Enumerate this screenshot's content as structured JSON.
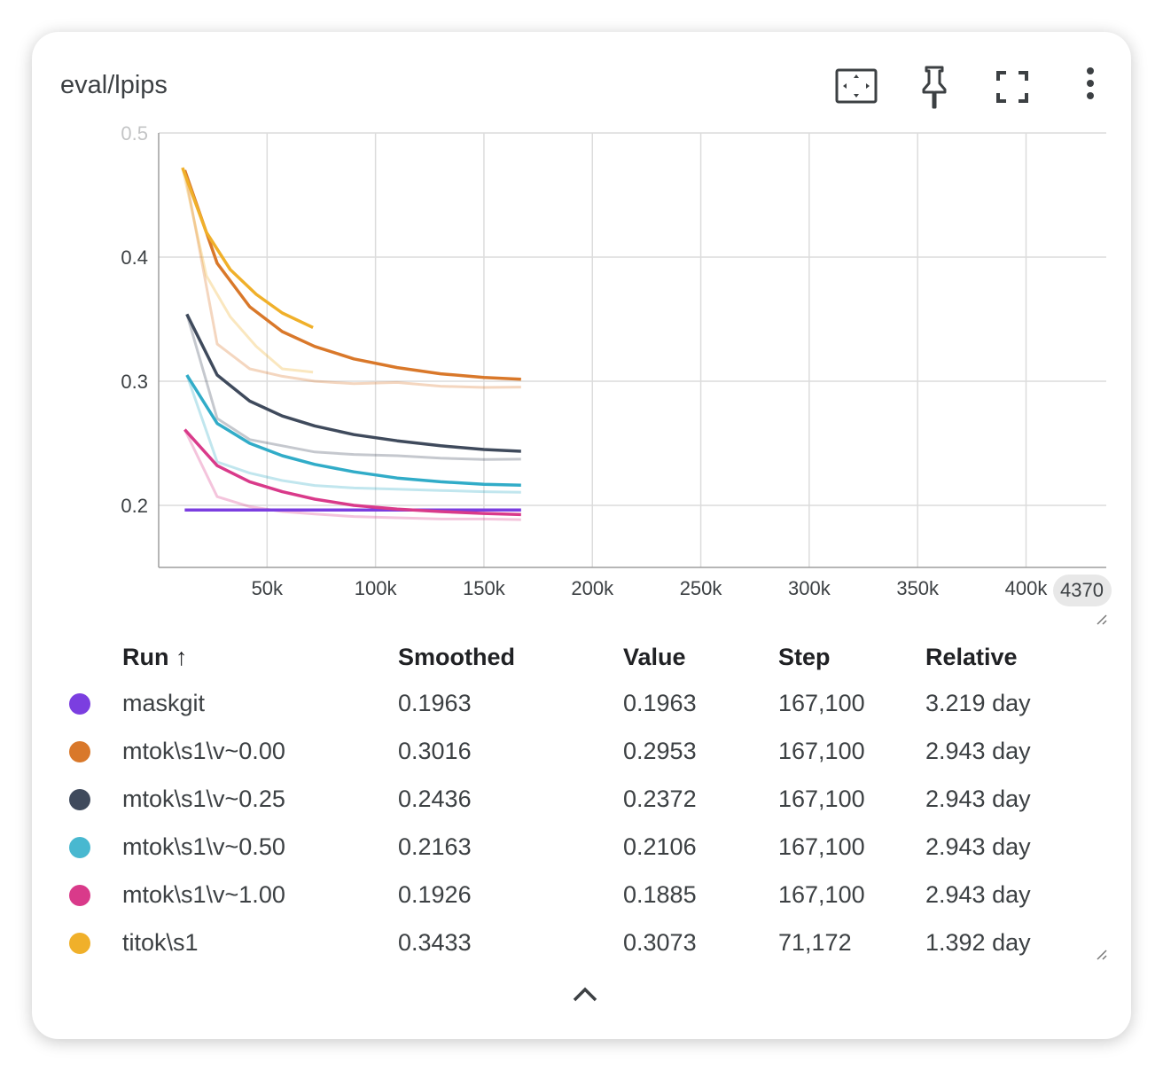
{
  "card": {
    "title": "eval/lpips"
  },
  "toolbar": {
    "fit_icon": "fit-domain-icon",
    "pin_icon": "pin-icon",
    "fullscreen_icon": "fullscreen-icon",
    "more_icon": "more-vert-icon"
  },
  "chart_data": {
    "type": "line",
    "title": "",
    "xlabel": "",
    "ylabel": "",
    "xlim": [
      0,
      437000
    ],
    "ylim": [
      0.15,
      0.5
    ],
    "x_ticks": [
      50000,
      100000,
      150000,
      200000,
      250000,
      300000,
      350000,
      400000
    ],
    "x_tick_labels": [
      "50k",
      "100k",
      "150k",
      "200k",
      "250k",
      "300k",
      "350k",
      "400k"
    ],
    "x_edge_label": "4370",
    "y_ticks": [
      0.2,
      0.3,
      0.4
    ],
    "y_tick_labels": [
      "0.2",
      "0.3",
      "0.4"
    ],
    "y_top_tick": 0.5,
    "y_top_tick_label": "0.5",
    "grid": true,
    "series": [
      {
        "name": "maskgit",
        "color": "#7b3ee0",
        "x": [
          12000,
          30000,
          45000,
          60000,
          80000,
          100000,
          120000,
          140000,
          167100
        ],
        "smoothed": [
          0.1963,
          0.1963,
          0.1963,
          0.1963,
          0.1963,
          0.1963,
          0.1963,
          0.1963,
          0.1963
        ],
        "raw": [
          0.1963,
          0.1963,
          0.1963,
          0.1963,
          0.1963,
          0.1963,
          0.1963,
          0.1963,
          0.1963
        ]
      },
      {
        "name": "mtok\\s1\\v~0.00",
        "color": "#d9782a",
        "x": [
          12000,
          27000,
          42000,
          57000,
          72000,
          90000,
          110000,
          130000,
          150000,
          167100
        ],
        "smoothed": [
          0.47,
          0.395,
          0.36,
          0.34,
          0.328,
          0.318,
          0.311,
          0.306,
          0.303,
          0.3016
        ],
        "raw": [
          0.47,
          0.33,
          0.31,
          0.304,
          0.3,
          0.298,
          0.299,
          0.296,
          0.295,
          0.2953
        ]
      },
      {
        "name": "mtok\\s1\\v~0.25",
        "color": "#3f4a5c",
        "x": [
          13000,
          27000,
          42000,
          57000,
          72000,
          90000,
          110000,
          130000,
          150000,
          167100
        ],
        "smoothed": [
          0.354,
          0.305,
          0.284,
          0.272,
          0.264,
          0.257,
          0.252,
          0.248,
          0.245,
          0.2436
        ],
        "raw": [
          0.354,
          0.27,
          0.253,
          0.248,
          0.243,
          0.241,
          0.24,
          0.238,
          0.237,
          0.2372
        ]
      },
      {
        "name": "mtok\\s1\\v~0.50",
        "color": "#31acc8",
        "x": [
          13000,
          27000,
          42000,
          57000,
          72000,
          90000,
          110000,
          130000,
          150000,
          167100
        ],
        "smoothed": [
          0.305,
          0.266,
          0.25,
          0.24,
          0.233,
          0.227,
          0.222,
          0.219,
          0.217,
          0.2163
        ],
        "raw": [
          0.305,
          0.235,
          0.226,
          0.22,
          0.216,
          0.214,
          0.213,
          0.212,
          0.211,
          0.2106
        ]
      },
      {
        "name": "mtok\\s1\\v~1.00",
        "color": "#d93a8a",
        "x": [
          12000,
          27000,
          42000,
          57000,
          72000,
          90000,
          110000,
          130000,
          150000,
          167100
        ],
        "smoothed": [
          0.261,
          0.232,
          0.219,
          0.211,
          0.205,
          0.2,
          0.197,
          0.195,
          0.1935,
          0.1926
        ],
        "raw": [
          0.261,
          0.207,
          0.199,
          0.195,
          0.193,
          0.191,
          0.19,
          0.189,
          0.189,
          0.1885
        ]
      },
      {
        "name": "titok\\s1",
        "color": "#f0b02a",
        "x": [
          11000,
          22000,
          33000,
          45000,
          57000,
          71172
        ],
        "smoothed": [
          0.472,
          0.42,
          0.39,
          0.37,
          0.355,
          0.3433
        ],
        "raw": [
          0.472,
          0.385,
          0.352,
          0.328,
          0.31,
          0.3073
        ]
      }
    ]
  },
  "table": {
    "headers": [
      "Run ↑",
      "Smoothed",
      "Value",
      "Step",
      "Relative"
    ],
    "rows": [
      {
        "color": "#7b3ee0",
        "run": "maskgit",
        "smoothed": "0.1963",
        "value": "0.1963",
        "step": "167,100",
        "relative": "3.219 day"
      },
      {
        "color": "#d9782a",
        "run": "mtok\\s1\\v~0.00",
        "smoothed": "0.3016",
        "value": "0.2953",
        "step": "167,100",
        "relative": "2.943 day"
      },
      {
        "color": "#3f4a5c",
        "run": "mtok\\s1\\v~0.25",
        "smoothed": "0.2436",
        "value": "0.2372",
        "step": "167,100",
        "relative": "2.943 day"
      },
      {
        "color": "#48b8d0",
        "run": "mtok\\s1\\v~0.50",
        "smoothed": "0.2163",
        "value": "0.2106",
        "step": "167,100",
        "relative": "2.943 day"
      },
      {
        "color": "#d93a8a",
        "run": "mtok\\s1\\v~1.00",
        "smoothed": "0.1926",
        "value": "0.1885",
        "step": "167,100",
        "relative": "2.943 day"
      },
      {
        "color": "#f0b02a",
        "run": "titok\\s1",
        "smoothed": "0.3433",
        "value": "0.3073",
        "step": "71,172",
        "relative": "1.392 day"
      }
    ]
  },
  "footer": {
    "collapse_icon": "chevron-up-icon"
  }
}
